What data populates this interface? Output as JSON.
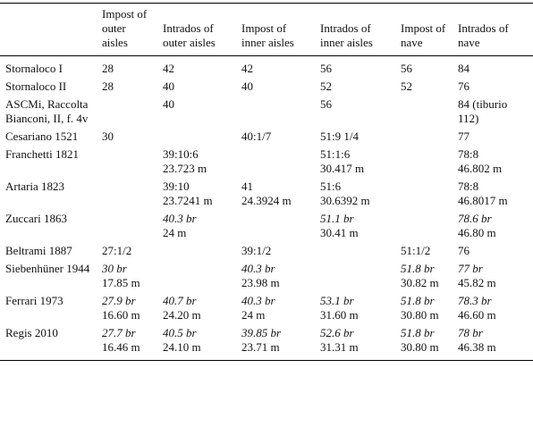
{
  "table": {
    "header": [
      "Impost of outer aisles",
      "Intrados of outer aisles",
      "Impost of inner aisles",
      "Intrados of inner aisles",
      "Impost of nave",
      "Intrados of nave"
    ],
    "rows": [
      {
        "label": "Stornaloco I",
        "cells": [
          [
            "28"
          ],
          [
            "42"
          ],
          [
            "42"
          ],
          [
            "56"
          ],
          [
            "56"
          ],
          [
            "84"
          ]
        ]
      },
      {
        "label": "Stornaloco II",
        "cells": [
          [
            "28"
          ],
          [
            "40"
          ],
          [
            "40"
          ],
          [
            "52"
          ],
          [
            "52"
          ],
          [
            "76"
          ]
        ]
      },
      {
        "label": "ASCMi, Raccolta Bianconi, II, f. 4v",
        "cells": [
          null,
          [
            "40"
          ],
          null,
          [
            "56"
          ],
          null,
          [
            "84 (tiburio 112)"
          ]
        ]
      },
      {
        "label": "Cesariano 1521",
        "cells": [
          [
            "30"
          ],
          null,
          [
            "40:1/7"
          ],
          [
            "51:9 1/4"
          ],
          null,
          [
            "77"
          ]
        ]
      },
      {
        "label": "Franchetti 1821",
        "cells": [
          null,
          [
            "39:10:6",
            "23.723 m"
          ],
          null,
          [
            "51:1:6",
            "30.417 m"
          ],
          null,
          [
            "78:8",
            "46.802 m"
          ]
        ]
      },
      {
        "label": "Artaria 1823",
        "cells": [
          null,
          [
            "39:10",
            "23.7241 m"
          ],
          [
            "41",
            "24.3924 m"
          ],
          [
            "51:6",
            "30.6392 m"
          ],
          null,
          [
            "78:8",
            "46.8017 m"
          ]
        ]
      },
      {
        "label": "Zuccari 1863",
        "cells": [
          null,
          [
            "40.3 br",
            "24 m"
          ],
          null,
          [
            "51.1 br",
            "30.41 m"
          ],
          null,
          [
            "78.6 br",
            "46.80 m"
          ]
        ]
      },
      {
        "label": "Beltrami 1887",
        "cells": [
          [
            "27:1/2"
          ],
          null,
          [
            "39:1/2"
          ],
          null,
          [
            "51:1/2"
          ],
          [
            "76"
          ]
        ]
      },
      {
        "label": "Siebenhüner 1944",
        "cells": [
          [
            "30 br",
            "17.85 m"
          ],
          null,
          [
            "40.3 br",
            "23.98 m"
          ],
          null,
          [
            "51.8 br",
            "30.82 m"
          ],
          [
            "77 br",
            "45.82 m"
          ]
        ]
      },
      {
        "label": "Ferrari 1973",
        "cells": [
          [
            "27.9 br",
            "16.60 m"
          ],
          [
            "40.7 br",
            "24.20 m"
          ],
          [
            "40.3 br",
            "24 m"
          ],
          [
            "53.1 br",
            "31.60 m"
          ],
          [
            "51.8 br",
            "30.80 m"
          ],
          [
            "78.3 br",
            "46.60 m"
          ]
        ]
      },
      {
        "label": "Regis 2010",
        "cells": [
          [
            "27.7 br",
            "16.46 m"
          ],
          [
            "40.5 br",
            "24.10 m"
          ],
          [
            "39.85 br",
            "23.71 m"
          ],
          [
            "52.6 br",
            "31.31 m"
          ],
          [
            "51.8 br",
            "30.80 m"
          ],
          [
            "78 br",
            "46.38 m"
          ]
        ]
      }
    ]
  }
}
